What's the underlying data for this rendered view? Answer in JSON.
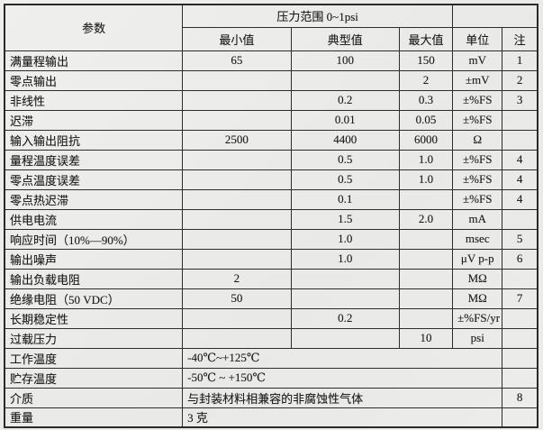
{
  "header": {
    "param": "参数",
    "pressure_range": "压力范围 0~1psi",
    "min": "最小值",
    "typ": "典型值",
    "max": "最大值",
    "unit": "单位",
    "note": "注"
  },
  "rows": [
    {
      "param": "满量程输出",
      "min": "65",
      "typ": "100",
      "max": "150",
      "unit": "mV",
      "note": "1"
    },
    {
      "param": "零点输出",
      "min": "",
      "typ": "",
      "max": "2",
      "unit": "±mV",
      "note": "2"
    },
    {
      "param": "非线性",
      "min": "",
      "typ": "0.2",
      "max": "0.3",
      "unit": "±%FS",
      "note": "3"
    },
    {
      "param": "迟滞",
      "min": "",
      "typ": "0.01",
      "max": "0.05",
      "unit": "±%FS",
      "note": ""
    },
    {
      "param": "输入输出阻抗",
      "min": "2500",
      "typ": "4400",
      "max": "6000",
      "unit": "Ω",
      "note": ""
    },
    {
      "param": "量程温度误差",
      "min": "",
      "typ": "0.5",
      "max": "1.0",
      "unit": "±%FS",
      "note": "4"
    },
    {
      "param": "零点温度误差",
      "min": "",
      "typ": "0.5",
      "max": "1.0",
      "unit": "±%FS",
      "note": "4"
    },
    {
      "param": "零点热迟滞",
      "min": "",
      "typ": "0.1",
      "max": "",
      "unit": "±%FS",
      "note": "4"
    },
    {
      "param": "供电电流",
      "min": "",
      "typ": "1.5",
      "max": "2.0",
      "unit": "mA",
      "note": ""
    },
    {
      "param": "响应时间（10%—90%）",
      "min": "",
      "typ": "1.0",
      "max": "",
      "unit": "msec",
      "note": "5"
    },
    {
      "param": "输出噪声",
      "min": "",
      "typ": "1.0",
      "max": "",
      "unit": "μV p-p",
      "note": "6"
    },
    {
      "param": "输出负载电阻",
      "min": "2",
      "typ": "",
      "max": "",
      "unit": "MΩ",
      "note": ""
    },
    {
      "param": "绝缘电阻（50 VDC）",
      "min": "50",
      "typ": "",
      "max": "",
      "unit": "MΩ",
      "note": "7"
    },
    {
      "param": "长期稳定性",
      "min": "",
      "typ": "0.2",
      "max": "",
      "unit": "±%FS/yr",
      "note": ""
    },
    {
      "param": "过载压力",
      "min": "",
      "typ": "",
      "max": "10",
      "unit": "psi",
      "note": ""
    }
  ],
  "span_rows": [
    {
      "param": "工作温度",
      "value": "-40℃~+125℃",
      "note": ""
    },
    {
      "param": "贮存温度",
      "value": "-50℃ ~ +150℃",
      "note": ""
    },
    {
      "param": "介质",
      "value": "与封装材料相兼容的非腐蚀性气体",
      "note": "8"
    },
    {
      "param": "重量",
      "value": "3 克",
      "note": ""
    }
  ]
}
